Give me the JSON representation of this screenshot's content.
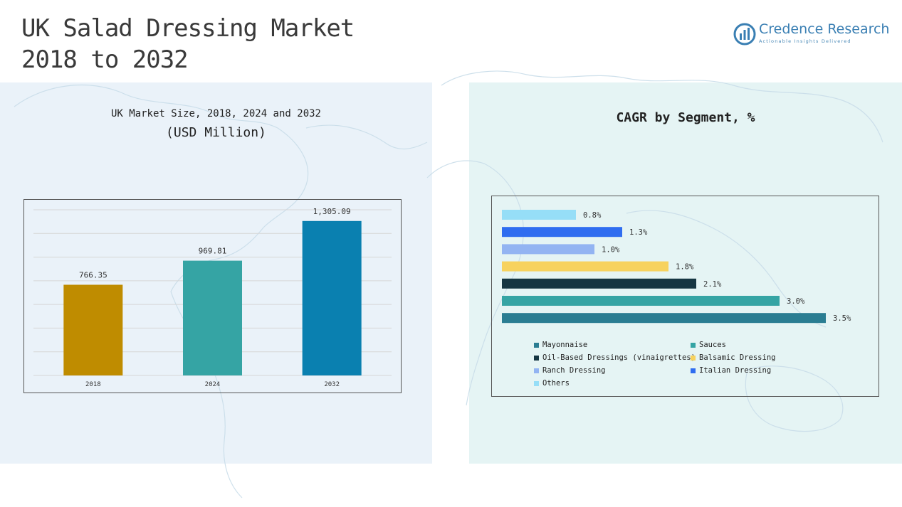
{
  "header": {
    "title_line1": "UK Salad Dressing Market",
    "title_line2": "2018 to 2032"
  },
  "logo": {
    "name": "Credence Research",
    "tagline": "Actionable Insights Delivered",
    "icon": "bar-chart-circle-icon"
  },
  "left_panel": {
    "title_line1": "UK Market Size, 2018, 2024 and 2032",
    "title_line2": "(USD Million)"
  },
  "right_panel": {
    "title": "CAGR by Segment, %"
  },
  "colors": {
    "bar_2018": "#bf8c00",
    "bar_2024": "#35a4a4",
    "bar_2032": "#0a80b0"
  },
  "chart_data": [
    {
      "type": "bar",
      "title": "UK Market Size, 2018, 2024 and 2032",
      "categories": [
        "2018",
        "2024",
        "2032"
      ],
      "values": [
        766.35,
        969.81,
        1305.09
      ],
      "value_labels": [
        "766.35",
        "969.81",
        "1,305.09"
      ],
      "colors": [
        "#bf8c00",
        "#35a4a4",
        "#0a80b0"
      ],
      "ylim": [
        0,
        1400
      ],
      "grid": true,
      "xlabel": "",
      "ylabel": ""
    },
    {
      "type": "bar",
      "orientation": "horizontal",
      "title": "CAGR by Segment, %",
      "categories": [
        "Others",
        "Italian Dressing",
        "Ranch Dressing",
        "Balsamic Dressing",
        "Oil-Based Dressings (vinaigrettes)",
        "Sauces",
        "Mayonnaise"
      ],
      "values": [
        0.8,
        1.3,
        1.0,
        1.8,
        2.1,
        3.0,
        3.5
      ],
      "value_labels": [
        "0.8%",
        "1.3%",
        "1.0%",
        "1.8%",
        "2.1%",
        "3.0%",
        "3.5%"
      ],
      "colors": [
        "#96def7",
        "#2f6df0",
        "#93b4f2",
        "#f7d25e",
        "#163642",
        "#35a4a4",
        "#2a7d92"
      ],
      "xlim": [
        0,
        3.5
      ],
      "grid": false,
      "legend_position": "bottom",
      "legend": [
        {
          "label": "Mayonnaise",
          "color": "#2a7d92"
        },
        {
          "label": "Sauces",
          "color": "#35a4a4"
        },
        {
          "label": "Oil-Based Dressings (vinaigrettes)",
          "color": "#163642"
        },
        {
          "label": "Balsamic Dressing",
          "color": "#f7d25e"
        },
        {
          "label": "Ranch Dressing",
          "color": "#93b4f2"
        },
        {
          "label": "Italian Dressing",
          "color": "#2f6df0"
        },
        {
          "label": "Others",
          "color": "#96def7"
        }
      ]
    }
  ]
}
